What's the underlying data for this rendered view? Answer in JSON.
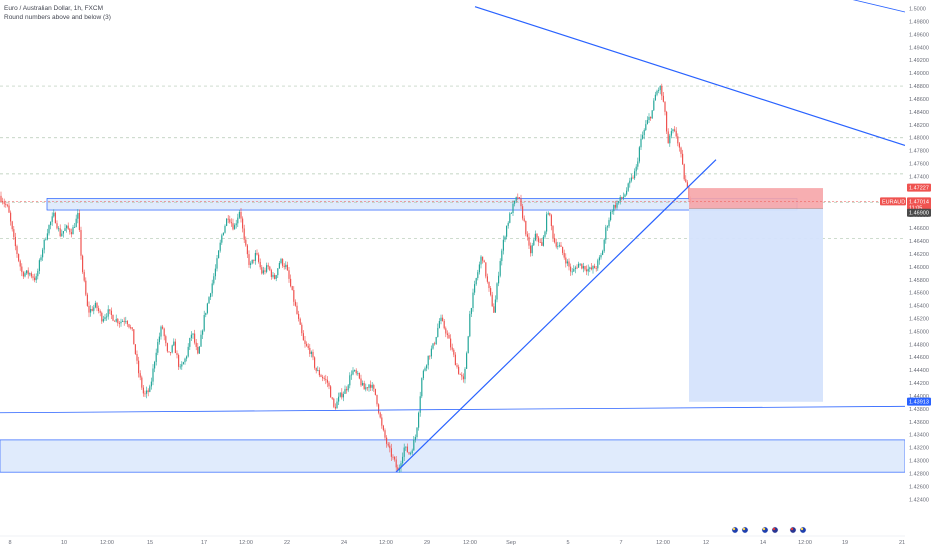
{
  "header": {
    "title": "Euro / Australian Dollar, 1h, FXCM",
    "indicator": "Round numbers above and below (3)"
  },
  "chart_data": {
    "type": "candlestick",
    "symbol": "EURAUD",
    "ylim": [
      1.4194,
      1.5004
    ],
    "price_ticks": [
      "1.5000",
      "1.49800",
      "1.49600",
      "1.49400",
      "1.49200",
      "1.49000",
      "1.48800",
      "1.48600",
      "1.48400",
      "1.48200",
      "1.48000",
      "1.47800",
      "1.47600",
      "1.47400",
      "1.47200",
      "1.47000",
      "1.46800",
      "1.46600",
      "1.46400",
      "1.46200",
      "1.46000",
      "1.45800",
      "1.45600",
      "1.45400",
      "1.45200",
      "1.45000",
      "1.44800",
      "1.44600",
      "1.44400",
      "1.44200",
      "1.44000",
      "1.43800",
      "1.43600",
      "1.43400",
      "1.43200",
      "1.43000",
      "1.42800",
      "1.42600",
      "1.42400"
    ],
    "time_ticks": [
      "8",
      "10",
      "12:00",
      "15",
      "17",
      "12:00",
      "22",
      "24",
      "12:00",
      "29",
      "12:00",
      "Sep",
      "5",
      "7",
      "12:00",
      "12",
      "14",
      "12:00",
      "19",
      "21"
    ],
    "price_labels": [
      {
        "text": "1.47227",
        "kind": "target-top"
      },
      {
        "text": "EURAUD",
        "kind": "symbol"
      },
      {
        "text": "1.47014",
        "kind": "last"
      },
      {
        "text": "11:05",
        "kind": "countdown"
      },
      {
        "text": "1.46900",
        "kind": "entry"
      },
      {
        "text": "1.43913",
        "kind": "target"
      }
    ],
    "round_number_levels": [
      1.488,
      1.48,
      1.4744,
      1.47,
      1.4644
    ],
    "support_zones": [
      {
        "from": 1.4688,
        "to": 1.4706,
        "x_start_label": "8",
        "x_end_label": "14"
      },
      {
        "from": 1.4282,
        "to": 1.4332,
        "x_start_label": "left",
        "x_end_label": "right"
      }
    ],
    "trendlines": [
      {
        "name": "descending",
        "from_price": 1.5003,
        "to_price": 1.4788
      },
      {
        "name": "ascending",
        "from_price": 1.4282,
        "to_price": 1.4766
      },
      {
        "name": "horizontal-low",
        "from_price": 1.4374,
        "to_price": 1.4384
      }
    ],
    "short_position": {
      "entry": 1.469,
      "stop": 1.4722,
      "target": 1.4391
    },
    "candles_note": "hourly OHLC path of EURAUD, ~Aug 8 to Sep 9",
    "path": [
      [
        0,
        1.471
      ],
      [
        8,
        1.469
      ],
      [
        14,
        1.464
      ],
      [
        22,
        1.459
      ],
      [
        30,
        1.459
      ],
      [
        36,
        1.458
      ],
      [
        42,
        1.4625
      ],
      [
        48,
        1.466
      ],
      [
        54,
        1.468
      ],
      [
        60,
        1.465
      ],
      [
        66,
        1.466
      ],
      [
        72,
        1.4655
      ],
      [
        78,
        1.468
      ],
      [
        82,
        1.46
      ],
      [
        88,
        1.453
      ],
      [
        96,
        1.454
      ],
      [
        102,
        1.452
      ],
      [
        108,
        1.453
      ],
      [
        114,
        1.452
      ],
      [
        120,
        1.4515
      ],
      [
        126,
        1.452
      ],
      [
        132,
        1.45
      ],
      [
        138,
        1.444
      ],
      [
        144,
        1.44
      ],
      [
        150,
        1.441
      ],
      [
        156,
        1.447
      ],
      [
        162,
        1.451
      ],
      [
        168,
        1.446
      ],
      [
        174,
        1.448
      ],
      [
        180,
        1.444
      ],
      [
        186,
        1.446
      ],
      [
        192,
        1.45
      ],
      [
        198,
        1.446
      ],
      [
        204,
        1.452
      ],
      [
        210,
        1.456
      ],
      [
        216,
        1.46
      ],
      [
        222,
        1.465
      ],
      [
        228,
        1.468
      ],
      [
        234,
        1.466
      ],
      [
        240,
        1.469
      ],
      [
        244,
        1.464
      ],
      [
        250,
        1.46
      ],
      [
        256,
        1.462
      ],
      [
        262,
        1.459
      ],
      [
        268,
        1.46
      ],
      [
        274,
        1.458
      ],
      [
        280,
        1.461
      ],
      [
        286,
        1.46
      ],
      [
        292,
        1.456
      ],
      [
        298,
        1.452
      ],
      [
        304,
        1.448
      ],
      [
        310,
        1.447
      ],
      [
        316,
        1.444
      ],
      [
        322,
        1.443
      ],
      [
        328,
        1.442
      ],
      [
        334,
        1.438
      ],
      [
        340,
        1.44
      ],
      [
        346,
        1.441
      ],
      [
        352,
        1.444
      ],
      [
        358,
        1.443
      ],
      [
        364,
        1.441
      ],
      [
        370,
        1.442
      ],
      [
        376,
        1.44
      ],
      [
        382,
        1.435
      ],
      [
        388,
        1.432
      ],
      [
        394,
        1.43
      ],
      [
        398,
        1.4282
      ],
      [
        404,
        1.432
      ],
      [
        410,
        1.431
      ],
      [
        416,
        1.434
      ],
      [
        422,
        1.443
      ],
      [
        428,
        1.446
      ],
      [
        434,
        1.448
      ],
      [
        440,
        1.452
      ],
      [
        446,
        1.45
      ],
      [
        452,
        1.447
      ],
      [
        458,
        1.444
      ],
      [
        464,
        1.442
      ],
      [
        470,
        1.453
      ],
      [
        476,
        1.458
      ],
      [
        482,
        1.462
      ],
      [
        488,
        1.457
      ],
      [
        494,
        1.453
      ],
      [
        500,
        1.461
      ],
      [
        506,
        1.466
      ],
      [
        512,
        1.469
      ],
      [
        518,
        1.471
      ],
      [
        524,
        1.467
      ],
      [
        530,
        1.462
      ],
      [
        536,
        1.465
      ],
      [
        542,
        1.463
      ],
      [
        548,
        1.469
      ],
      [
        554,
        1.464
      ],
      [
        560,
        1.463
      ],
      [
        566,
        1.461
      ],
      [
        572,
        1.459
      ],
      [
        578,
        1.4605
      ],
      [
        584,
        1.46
      ],
      [
        590,
        1.4595
      ],
      [
        596,
        1.46
      ],
      [
        602,
        1.462
      ],
      [
        606,
        1.466
      ],
      [
        612,
        1.469
      ],
      [
        618,
        1.47
      ],
      [
        624,
        1.471
      ],
      [
        630,
        1.473
      ],
      [
        636,
        1.475
      ],
      [
        640,
        1.479
      ],
      [
        646,
        1.482
      ],
      [
        652,
        1.484
      ],
      [
        656,
        1.487
      ],
      [
        660,
        1.4878
      ],
      [
        664,
        1.485
      ],
      [
        668,
        1.479
      ],
      [
        672,
        1.481
      ],
      [
        676,
        1.4805
      ],
      [
        680,
        1.478
      ],
      [
        684,
        1.474
      ],
      [
        688,
        1.4715
      ],
      [
        692,
        1.4701
      ]
    ]
  },
  "axis_ui": {
    "currency_icons": [
      "eu-flag-icon",
      "eu-flag-icon",
      "eu-flag-icon",
      "au-flag-icon",
      "au-flag-icon",
      "eu-flag-icon"
    ]
  },
  "colors": {
    "up": "#26a69a",
    "down": "#ef5350",
    "trendline": "#2962ff",
    "zone_fill": "#dbe7fb",
    "stop_fill": "#f6a5a9",
    "target_fill": "#d5e3fc",
    "grid_dash": "#b2c8b2"
  }
}
